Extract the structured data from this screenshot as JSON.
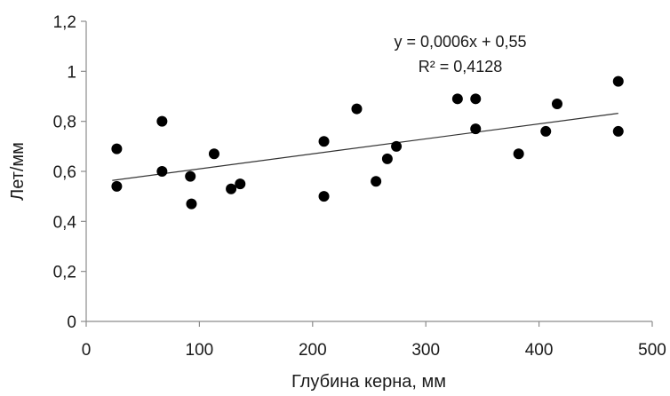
{
  "chart_data": {
    "type": "scatter",
    "title": "",
    "xlabel": "Глубина керна, мм",
    "ylabel": "Лет/мм",
    "xlim": [
      0,
      500
    ],
    "ylim": [
      0,
      1.2
    ],
    "x_ticks": [
      0,
      100,
      200,
      300,
      400,
      500
    ],
    "x_tick_labels": [
      "0",
      "100",
      "200",
      "300",
      "400",
      "500"
    ],
    "y_ticks": [
      0,
      0.2,
      0.4,
      0.6,
      0.8,
      1.0,
      1.2
    ],
    "y_tick_labels": [
      "0",
      "0,2",
      "0,4",
      "0,6",
      "0,8",
      "1",
      "1,2"
    ],
    "grid": false,
    "legend": "none",
    "marker_color": "#000000",
    "trendline_color": "#333333",
    "points": [
      {
        "x": 27,
        "y": 0.69
      },
      {
        "x": 27,
        "y": 0.54
      },
      {
        "x": 67,
        "y": 0.8
      },
      {
        "x": 67,
        "y": 0.6
      },
      {
        "x": 92,
        "y": 0.58
      },
      {
        "x": 93,
        "y": 0.47
      },
      {
        "x": 113,
        "y": 0.67
      },
      {
        "x": 128,
        "y": 0.53
      },
      {
        "x": 136,
        "y": 0.55
      },
      {
        "x": 210,
        "y": 0.72
      },
      {
        "x": 210,
        "y": 0.5
      },
      {
        "x": 239,
        "y": 0.85
      },
      {
        "x": 256,
        "y": 0.56
      },
      {
        "x": 266,
        "y": 0.65
      },
      {
        "x": 274,
        "y": 0.7
      },
      {
        "x": 328,
        "y": 0.89
      },
      {
        "x": 344,
        "y": 0.89
      },
      {
        "x": 344,
        "y": 0.77
      },
      {
        "x": 382,
        "y": 0.67
      },
      {
        "x": 406,
        "y": 0.76
      },
      {
        "x": 416,
        "y": 0.87
      },
      {
        "x": 470,
        "y": 0.96
      },
      {
        "x": 470,
        "y": 0.76
      }
    ],
    "trendline": {
      "slope": 0.0006,
      "intercept": 0.55,
      "x_range": [
        23,
        470
      ]
    },
    "annotations": {
      "equation": "y = 0,0006x + 0,55",
      "r_squared": "R² = 0,4128"
    }
  }
}
